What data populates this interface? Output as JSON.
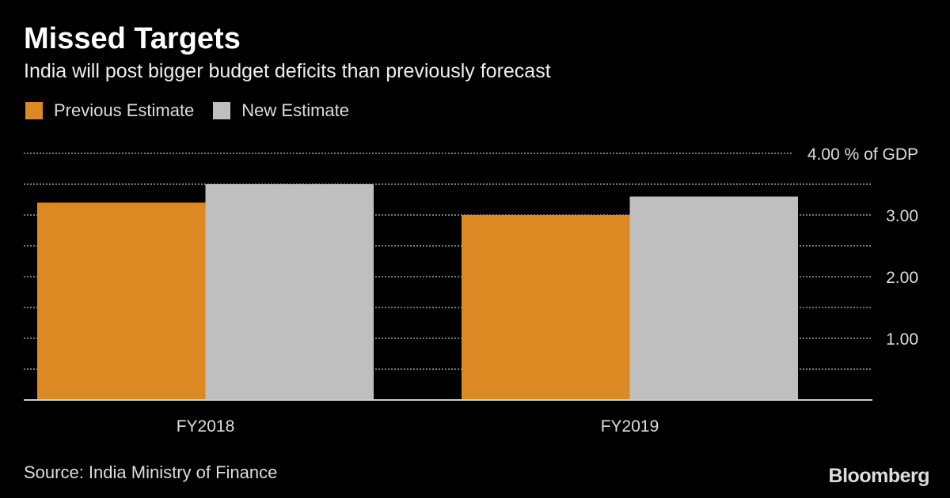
{
  "chart_data": {
    "type": "bar",
    "title": "Missed Targets",
    "subtitle": "India will post bigger budget deficits than previously forecast",
    "categories": [
      "FY2018",
      "FY2019"
    ],
    "series": [
      {
        "name": "Previous Estimate",
        "color": "#dc8924",
        "values": [
          3.2,
          3.0
        ]
      },
      {
        "name": "New Estimate",
        "color": "#bfbfbf",
        "values": [
          3.5,
          3.3
        ]
      }
    ],
    "ylim": [
      0,
      4
    ],
    "yticks": [
      1,
      2,
      3,
      4
    ],
    "ytick_labels": [
      "1.00",
      "2.00",
      "3.00",
      "4.00 % of GDP"
    ],
    "grid": true,
    "legend": "top-left",
    "source": "Source: India Ministry of Finance",
    "logo": "Bloomberg"
  }
}
